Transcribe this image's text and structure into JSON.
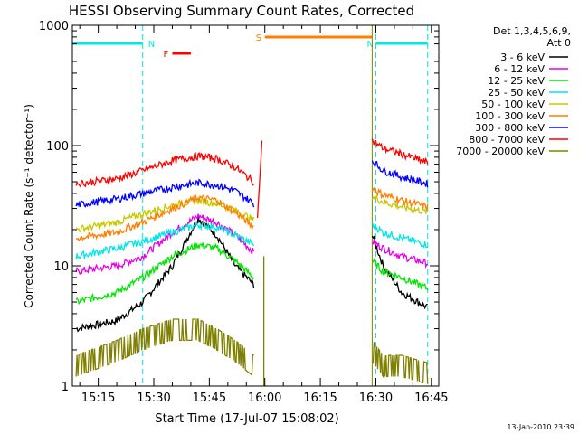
{
  "chart_data": {
    "type": "line",
    "title": "HESSI Observing Summary Count Rates, Corrected",
    "xlabel": "Start Time (17-Jul-07 15:08:02)",
    "ylabel": "Corrected Count Rate (s⁻¹ detector⁻¹)",
    "yscale": "log",
    "ylim": [
      1,
      1000
    ],
    "xlim": [
      "15:08",
      "16:47"
    ],
    "x_ticks": [
      "15:15",
      "15:30",
      "15:45",
      "16:00",
      "16:15",
      "16:30",
      "16:45"
    ],
    "y_ticks": [
      "1",
      "10",
      "100",
      "1000"
    ],
    "legend": {
      "title_line1": "Det 1,3,4,5,6,9,",
      "title_line2": "Att 0",
      "placement": "top-right-outside"
    },
    "flags": [
      {
        "label": "N",
        "color": "#00e5e5",
        "start": "15:08",
        "end": "15:27"
      },
      {
        "label": "N",
        "color": "#00e5e5",
        "start": "16:30",
        "end": "16:44"
      },
      {
        "label": "F",
        "color": "#ff0000",
        "start": "15:35",
        "end": "15:40"
      },
      {
        "label": "S",
        "color": "#ff7f00",
        "start": "16:00",
        "end": "16:29"
      }
    ],
    "series": [
      {
        "name": "3 - 6 keV",
        "color": "#000000",
        "x": [
          "15:09",
          "15:20",
          "15:27",
          "15:35",
          "15:42",
          "15:47",
          "15:52",
          "15:57",
          "16:29",
          "16:32",
          "16:37",
          "16:44"
        ],
        "y": [
          3,
          3.5,
          5,
          10,
          25,
          18,
          10,
          7,
          18,
          10,
          6,
          4.5
        ]
      },
      {
        "name": "6 - 12 keV",
        "color": "#e600e6",
        "x": [
          "15:09",
          "15:20",
          "15:27",
          "15:35",
          "15:42",
          "15:47",
          "15:52",
          "15:57",
          "16:29",
          "16:32",
          "16:37",
          "16:44"
        ],
        "y": [
          9,
          10,
          12,
          19,
          26,
          23,
          18,
          13,
          16,
          14,
          12,
          10.5
        ]
      },
      {
        "name": "12 - 25 keV",
        "color": "#00e600",
        "x": [
          "15:09",
          "15:20",
          "15:27",
          "15:35",
          "15:42",
          "15:47",
          "15:52",
          "15:57",
          "16:29",
          "16:32",
          "16:37",
          "16:44"
        ],
        "y": [
          5,
          6,
          8,
          12,
          15,
          14,
          11,
          8,
          11,
          9,
          8,
          6.5
        ]
      },
      {
        "name": "25 - 50 keV",
        "color": "#00e5e5",
        "x": [
          "15:09",
          "15:20",
          "15:27",
          "15:35",
          "15:42",
          "15:47",
          "15:52",
          "15:57",
          "16:29",
          "16:32",
          "16:37",
          "16:44"
        ],
        "y": [
          12,
          14,
          16,
          19,
          22,
          21,
          18,
          15,
          22,
          19,
          17,
          15
        ]
      },
      {
        "name": "50 - 100 keV",
        "color": "#c8c800",
        "x": [
          "15:09",
          "15:20",
          "15:27",
          "15:35",
          "15:42",
          "15:47",
          "15:52",
          "15:57",
          "16:29",
          "16:32",
          "16:37",
          "16:44"
        ],
        "y": [
          20,
          23,
          27,
          32,
          35,
          33,
          29,
          24,
          38,
          34,
          31,
          28
        ]
      },
      {
        "name": "100 - 300 keV",
        "color": "#ff7f00",
        "x": [
          "15:09",
          "15:20",
          "15:27",
          "15:35",
          "15:42",
          "15:47",
          "15:52",
          "15:57",
          "16:29",
          "16:32",
          "16:37",
          "16:44"
        ],
        "y": [
          17,
          19,
          23,
          30,
          37,
          35,
          28,
          21,
          44,
          39,
          35,
          31
        ]
      },
      {
        "name": "300 - 800 keV",
        "color": "#0000ff",
        "x": [
          "15:09",
          "15:20",
          "15:27",
          "15:35",
          "15:42",
          "15:47",
          "15:52",
          "15:57",
          "16:29",
          "16:32",
          "16:37",
          "16:44"
        ],
        "y": [
          32,
          36,
          40,
          45,
          49,
          47,
          42,
          33,
          75,
          62,
          55,
          48
        ]
      },
      {
        "name": "800 - 7000 keV",
        "color": "#ff0000",
        "x": [
          "15:09",
          "15:20",
          "15:27",
          "15:35",
          "15:42",
          "15:47",
          "15:52",
          "15:57",
          "16:29",
          "16:32",
          "16:37",
          "16:44"
        ],
        "y": [
          48,
          53,
          62,
          75,
          82,
          78,
          66,
          50,
          110,
          95,
          85,
          72
        ]
      },
      {
        "name": "7000 - 20000 keV",
        "color": "#808000",
        "x": [
          "15:09",
          "15:20",
          "15:27",
          "15:35",
          "15:42",
          "15:47",
          "15:52",
          "15:57",
          "16:29",
          "16:32",
          "16:37",
          "16:44"
        ],
        "y": [
          1.5,
          2,
          2.5,
          3,
          3,
          2.5,
          2,
          1.5,
          2,
          1.5,
          1.5,
          1.3
        ]
      }
    ]
  },
  "footer": {
    "timestamp": "13-Jan-2010 23:39"
  }
}
